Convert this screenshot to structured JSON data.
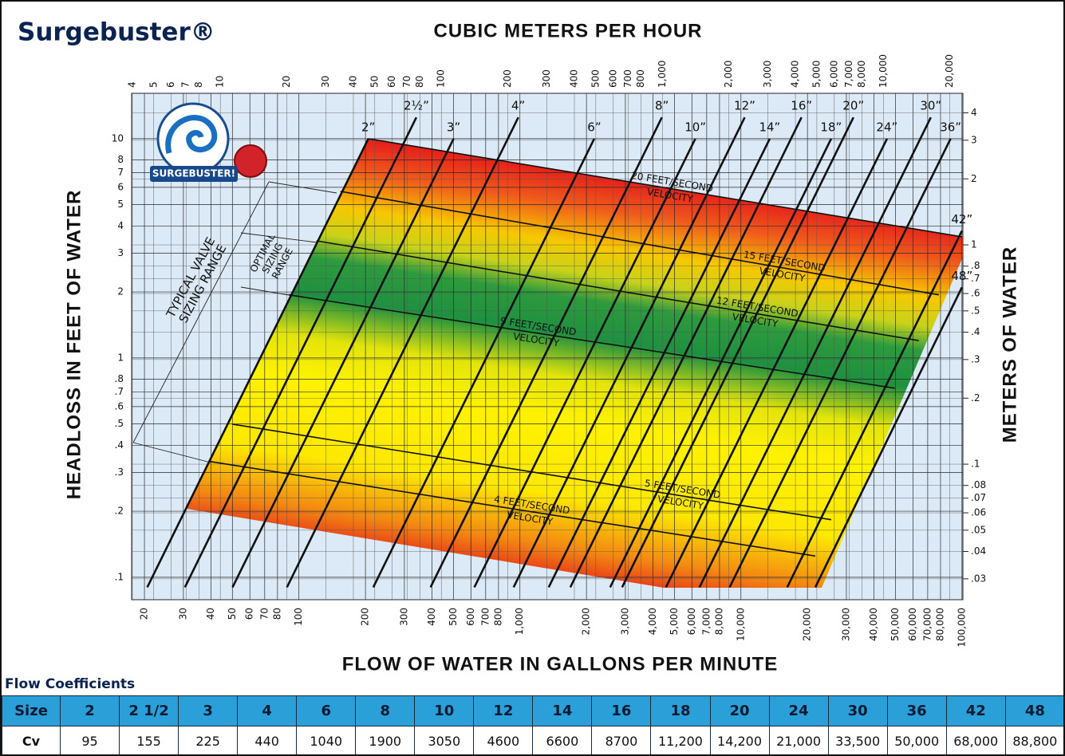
{
  "chart_data": {
    "type": "line",
    "title": "Surgebuster®",
    "x_label": "FLOW OF WATER IN GALLONS PER MINUTE",
    "x2_label": "CUBIC METERS PER HOUR",
    "y_label": "HEADLOSS IN FEET OF WATER",
    "y2_label": "METERS OF WATER",
    "xscale": "log",
    "yscale": "log",
    "grid": true,
    "xlim": [
      17.5,
      101000
    ],
    "xticks": [
      20,
      30,
      40,
      50,
      60,
      70,
      80,
      100,
      200,
      300,
      400,
      500,
      600,
      700,
      800,
      {
        "value": 1000,
        "label": "1,000"
      },
      {
        "value": 2000,
        "label": "2,000"
      },
      {
        "value": 3000,
        "label": "3,000"
      },
      {
        "value": 4000,
        "label": "4,000"
      },
      {
        "value": 5000,
        "label": "5,000"
      },
      {
        "value": 6000,
        "label": "6,000"
      },
      {
        "value": 7000,
        "label": "7,000"
      },
      {
        "value": 8000,
        "label": "8,000"
      },
      {
        "value": 10000,
        "label": "10,000"
      },
      {
        "value": 20000,
        "label": "20,000"
      },
      {
        "value": 30000,
        "label": "30,000"
      },
      {
        "value": 40000,
        "label": "40,000"
      },
      {
        "value": 50000,
        "label": "50,000"
      },
      {
        "value": 60000,
        "label": "60,000"
      },
      {
        "value": 70000,
        "label": "70,000"
      },
      {
        "value": 80000,
        "label": "80,000"
      },
      {
        "value": 100000,
        "label": "100,000"
      }
    ],
    "x2lim": [
      3.97,
      22900
    ],
    "x2ticks": [
      4,
      5,
      6,
      7,
      8,
      10,
      20,
      30,
      40,
      50,
      60,
      70,
      80,
      100,
      200,
      300,
      400,
      500,
      600,
      700,
      800,
      {
        "value": 1000,
        "label": "1,000"
      },
      {
        "value": 2000,
        "label": "2,000"
      },
      {
        "value": 3000,
        "label": "3,000"
      },
      {
        "value": 4000,
        "label": "4,000"
      },
      {
        "value": 5000,
        "label": "5,000"
      },
      {
        "value": 6000,
        "label": "6,000"
      },
      {
        "value": 7000,
        "label": "7,000"
      },
      {
        "value": 8000,
        "label": "8,000"
      },
      {
        "value": 10000,
        "label": "10,000"
      },
      {
        "value": 20000,
        "label": "20,000"
      }
    ],
    "ylim": [
      0.079,
      16.1
    ],
    "yticks": [
      10,
      8,
      7,
      6,
      5,
      4,
      3,
      2,
      1,
      {
        "value": 0.8,
        "label": ".8"
      },
      {
        "value": 0.7,
        "label": ".7"
      },
      {
        "value": 0.6,
        "label": ".6"
      },
      {
        "value": 0.5,
        "label": ".5"
      },
      {
        "value": 0.4,
        "label": ".4"
      },
      {
        "value": 0.3,
        "label": ".3"
      },
      {
        "value": 0.2,
        "label": ".2"
      },
      {
        "value": 0.1,
        "label": ".1"
      }
    ],
    "y2lim": [
      0.0241,
      4.91
    ],
    "y2ticks": [
      4,
      3,
      2,
      1,
      {
        "value": 0.8,
        "label": ".8"
      },
      {
        "value": 0.7,
        "label": ".7"
      },
      {
        "value": 0.6,
        "label": ".6"
      },
      {
        "value": 0.5,
        "label": ".5"
      },
      {
        "value": 0.4,
        "label": ".4"
      },
      {
        "value": 0.3,
        "label": ".3"
      },
      {
        "value": 0.2,
        "label": ".2"
      },
      {
        "value": 0.1,
        "label": ".1"
      },
      {
        "value": 0.08,
        "label": ".08"
      },
      {
        "value": 0.07,
        "label": ".07"
      },
      {
        "value": 0.06,
        "label": ".06"
      },
      {
        "value": 0.05,
        "label": ".05"
      },
      {
        "value": 0.04,
        "label": ".04"
      },
      {
        "value": 0.03,
        "label": ".03"
      }
    ],
    "series": [
      {
        "name": "2”",
        "color": "#111111",
        "x": [
          20.6,
          206
        ],
        "values": [
          0.09,
          10
        ]
      },
      {
        "name": "2½”",
        "color": "#111111",
        "x": [
          30.5,
          340
        ],
        "values": [
          0.09,
          12.5
        ]
      },
      {
        "name": "3”",
        "color": "#111111",
        "x": [
          50.1,
          501
        ],
        "values": [
          0.09,
          10
        ]
      },
      {
        "name": "4”",
        "color": "#111111",
        "x": [
          88.3,
          983
        ],
        "values": [
          0.09,
          12.5
        ]
      },
      {
        "name": "6”",
        "color": "#111111",
        "x": [
          217,
          2170
        ],
        "values": [
          0.09,
          10
        ]
      },
      {
        "name": "8”",
        "color": "#111111",
        "x": [
          394,
          4390
        ],
        "values": [
          0.09,
          12.5
        ]
      },
      {
        "name": "10”",
        "color": "#111111",
        "x": [
          622,
          6220
        ],
        "values": [
          0.09,
          10
        ]
      },
      {
        "name": "12”",
        "color": "#111111",
        "x": [
          936,
          10400
        ],
        "values": [
          0.09,
          12.5
        ]
      },
      {
        "name": "14”",
        "color": "#111111",
        "x": [
          1350,
          13500
        ],
        "values": [
          0.09,
          10
        ]
      },
      {
        "name": "16”",
        "color": "#111111",
        "x": [
          1690,
          18800
        ],
        "values": [
          0.09,
          12.5
        ]
      },
      {
        "name": "18”",
        "color": "#111111",
        "x": [
          2560,
          25600
        ],
        "values": [
          0.09,
          10
        ]
      },
      {
        "name": "20”",
        "color": "#111111",
        "x": [
          2900,
          32300
        ],
        "values": [
          0.09,
          12.5
        ]
      },
      {
        "name": "24”",
        "color": "#111111",
        "x": [
          4580,
          45800
        ],
        "values": [
          0.09,
          10
        ]
      },
      {
        "name": "30”",
        "color": "#111111",
        "x": [
          6490,
          72300
        ],
        "values": [
          0.09,
          12.5
        ]
      },
      {
        "name": "36”",
        "color": "#111111",
        "x": [
          8890,
          88900
        ],
        "values": [
          0.09,
          10
        ]
      },
      {
        "name": "42”",
        "color": "#111111",
        "x": [
          16200,
          100000
        ],
        "values": [
          0.09,
          3.8
        ]
      },
      {
        "name": "48”",
        "color": "#111111",
        "x": [
          21700,
          100000
        ],
        "values": [
          0.09,
          2.1
        ]
      },
      {
        "name": "20 FEET/SECOND",
        "sublabel": "VELOCITY",
        "color": "#111111",
        "x": [
          206,
          100000
        ],
        "values": [
          10,
          3.57
        ]
      },
      {
        "name": "15 FEET/SECOND",
        "sublabel": "VELOCITY",
        "color": "#111111",
        "x": [
          154,
          78600
        ],
        "values": [
          5.75,
          1.94
        ]
      },
      {
        "name": "12 FEET/SECOND",
        "sublabel": "VELOCITY",
        "color": "#111111",
        "x": [
          120,
          63800
        ],
        "values": [
          3.42,
          1.2
        ]
      },
      {
        "name": "9 FEET/SECOND",
        "sublabel": "VELOCITY",
        "color": "#111111",
        "x": [
          89.8,
          49800
        ],
        "values": [
          1.94,
          0.728
        ]
      },
      {
        "name": "5 FEET/SECOND",
        "sublabel": "VELOCITY",
        "color": "#111111",
        "x": [
          50.1,
          25600
        ],
        "values": [
          0.499,
          0.183
        ]
      },
      {
        "name": "4 FEET/SECOND",
        "sublabel": "VELOCITY",
        "color": "#111111",
        "x": [
          39.7,
          21700
        ],
        "values": [
          0.337,
          0.125
        ]
      }
    ],
    "annotations": [
      [
        "TYPICAL VALVE",
        "SIZING RANGE"
      ],
      [
        "OPTIMAL",
        "SIZING",
        "RANGE"
      ]
    ],
    "logo_text": "SURGEBUSTER!"
  },
  "table": {
    "title": "Flow Coefficients",
    "header": [
      "Size",
      "2",
      "2 1/2",
      "3",
      "4",
      "6",
      "8",
      "10",
      "12",
      "14",
      "16",
      "18",
      "20",
      "24",
      "30",
      "36",
      "42",
      "48"
    ],
    "rows": [
      [
        "Cv",
        "95",
        "155",
        "225",
        "440",
        "1040",
        "1900",
        "3050",
        "4600",
        "6600",
        "8700",
        "11,200",
        "14,200",
        "21,000",
        "33,500",
        "50,000",
        "68,000",
        "88,800"
      ]
    ]
  }
}
